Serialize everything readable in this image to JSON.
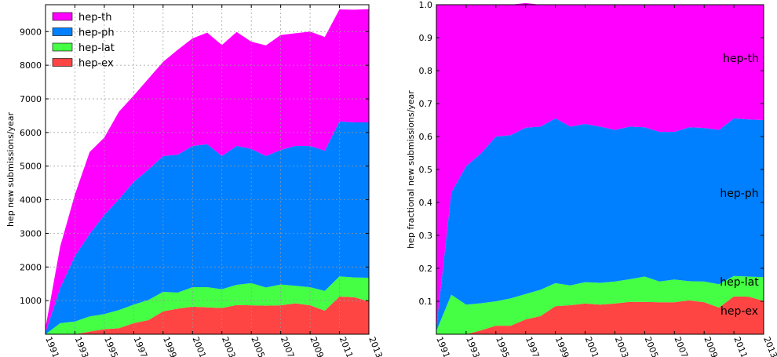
{
  "chart_data": [
    {
      "type": "area",
      "stacked": true,
      "x": [
        1991,
        1992,
        1993,
        1994,
        1995,
        1996,
        1997,
        1998,
        1999,
        2000,
        2001,
        2002,
        2003,
        2004,
        2005,
        2006,
        2007,
        2008,
        2009,
        2010,
        2011,
        2012,
        2013
      ],
      "x_tick_labels": [
        "1991",
        "1993",
        "1995",
        "1997",
        "1999",
        "2001",
        "2003",
        "2005",
        "2007",
        "2009",
        "2011",
        "2013"
      ],
      "y_tick_labels": [
        "1000",
        "2000",
        "3000",
        "4000",
        "5000",
        "6000",
        "7000",
        "8000",
        "9000"
      ],
      "ylabel": "hep new submissions/year",
      "xlim": [
        1991,
        2013
      ],
      "ylim": [
        0,
        9800
      ],
      "grid": true,
      "legend": "top-left",
      "series": [
        {
          "name": "hep-ex",
          "color": "#ff4444",
          "values": [
            0,
            0,
            0,
            80,
            150,
            180,
            330,
            420,
            680,
            760,
            820,
            800,
            780,
            870,
            860,
            850,
            860,
            920,
            860,
            700,
            1120,
            1100,
            980
          ]
        },
        {
          "name": "hep-lat",
          "color": "#44ff44",
          "values": [
            0,
            330,
            380,
            450,
            450,
            540,
            550,
            600,
            580,
            480,
            580,
            600,
            560,
            600,
            660,
            540,
            620,
            520,
            540,
            590,
            600,
            590,
            700
          ]
        },
        {
          "name": "hep-ph",
          "color": "#0080ff",
          "values": [
            50,
            1050,
            1950,
            2450,
            2950,
            3300,
            3650,
            3880,
            4040,
            4100,
            4200,
            4250,
            3960,
            4130,
            3990,
            3910,
            4000,
            4160,
            4200,
            4170,
            4610,
            4610,
            4620
          ]
        },
        {
          "name": "hep-th",
          "color": "#ff00ff",
          "values": [
            150,
            1230,
            1830,
            2440,
            2300,
            2600,
            2570,
            2700,
            2800,
            3120,
            3200,
            3320,
            3300,
            3390,
            3190,
            3290,
            3420,
            3350,
            3400,
            3380,
            3330,
            3350,
            3370
          ]
        }
      ]
    },
    {
      "type": "area",
      "stacked": true,
      "x": [
        1991,
        1992,
        1993,
        1994,
        1995,
        1996,
        1997,
        1998,
        1999,
        2000,
        2001,
        2002,
        2003,
        2004,
        2005,
        2006,
        2007,
        2008,
        2009,
        2010,
        2011,
        2012,
        2013
      ],
      "x_tick_labels": [
        "1991",
        "1993",
        "1995",
        "1997",
        "1999",
        "2001",
        "2003",
        "2005",
        "2007",
        "2009",
        "2011",
        "2013"
      ],
      "y_tick_labels": [
        "0.1",
        "0.2",
        "0.3",
        "0.4",
        "0.5",
        "0.6",
        "0.7",
        "0.8",
        "0.9",
        "1.0"
      ],
      "ylabel": "hep fractional new submissions/year",
      "xlim": [
        1991,
        2013
      ],
      "ylim": [
        0,
        1.0
      ],
      "grid": false,
      "series": [
        {
          "name": "hep-ex",
          "color": "#ff4444",
          "label": "hep-ex",
          "values": [
            0,
            0,
            0,
            0.012,
            0.026,
            0.026,
            0.045,
            0.055,
            0.085,
            0.088,
            0.093,
            0.09,
            0.093,
            0.098,
            0.098,
            0.097,
            0.097,
            0.103,
            0.097,
            0.081,
            0.115,
            0.114,
            0.101
          ]
        },
        {
          "name": "hep-lat",
          "color": "#44ff44",
          "label": "hep-lat",
          "values": [
            0.01,
            0.12,
            0.09,
            0.082,
            0.074,
            0.083,
            0.077,
            0.08,
            0.07,
            0.06,
            0.065,
            0.066,
            0.067,
            0.069,
            0.077,
            0.063,
            0.069,
            0.058,
            0.063,
            0.071,
            0.062,
            0.061,
            0.072
          ]
        },
        {
          "name": "hep-ph",
          "color": "#0080ff",
          "label": "hep-ph",
          "values": [
            0.01,
            0.31,
            0.42,
            0.455,
            0.5,
            0.495,
            0.505,
            0.495,
            0.5,
            0.482,
            0.48,
            0.474,
            0.46,
            0.463,
            0.453,
            0.454,
            0.448,
            0.467,
            0.466,
            0.468,
            0.478,
            0.477,
            0.477
          ]
        },
        {
          "name": "hep-th",
          "color": "#ff00ff",
          "label": "hep-th",
          "values": [
            0.98,
            0.57,
            0.49,
            0.451,
            0.4,
            0.396,
            0.378,
            0.37,
            0.345,
            0.37,
            0.362,
            0.37,
            0.38,
            0.37,
            0.372,
            0.386,
            0.386,
            0.372,
            0.374,
            0.38,
            0.345,
            0.348,
            0.35
          ]
        }
      ]
    }
  ]
}
